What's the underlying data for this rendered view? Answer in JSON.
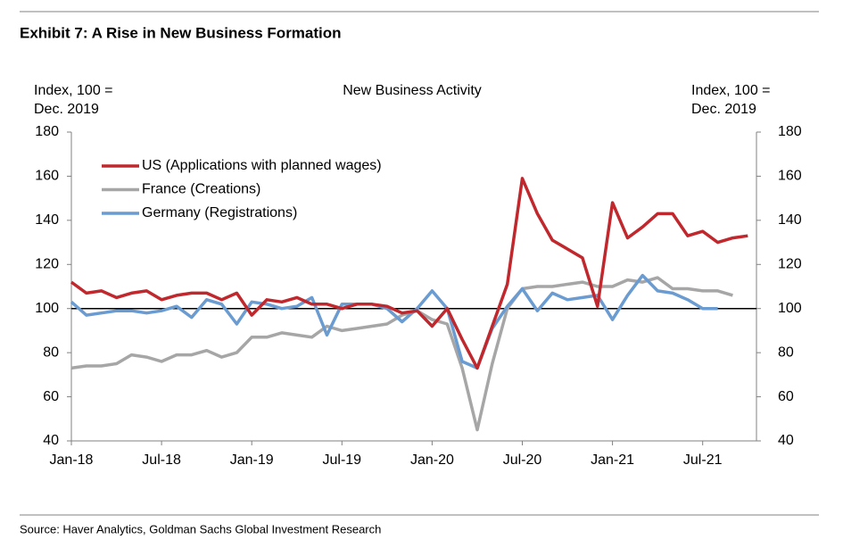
{
  "chart_data": {
    "type": "line",
    "title": "Exhibit 7: A Rise in New Business Formation",
    "subtitle": "New Business Activity",
    "y_label_lines": [
      "Index, 100 =",
      "Dec. 2019"
    ],
    "y2_label_lines": [
      "Index, 100 =",
      "Dec. 2019"
    ],
    "source": "Source: Haver Analytics, Goldman Sachs Global Investment Research",
    "categories": [
      "Jan-18",
      null,
      null,
      null,
      null,
      null,
      "Jul-18",
      null,
      null,
      null,
      null,
      null,
      "Jan-19",
      null,
      null,
      null,
      null,
      null,
      "Jul-19",
      null,
      null,
      null,
      null,
      null,
      "Jan-20",
      null,
      null,
      null,
      null,
      null,
      "Jul-20",
      null,
      null,
      null,
      null,
      null,
      "Jan-21",
      null,
      null,
      null,
      null,
      null,
      "Jul-21",
      null,
      null,
      null
    ],
    "series": [
      {
        "name": "US (Applications with planned wages)",
        "color": "#c0282d",
        "values": [
          112,
          107,
          108,
          105,
          107,
          108,
          104,
          106,
          107,
          107,
          104,
          107,
          97,
          104,
          103,
          105,
          102,
          102,
          100,
          102,
          102,
          101,
          98,
          99,
          92,
          100,
          86,
          73,
          92,
          111,
          159,
          143,
          131,
          127,
          123,
          101,
          148,
          132,
          137,
          143,
          143,
          133,
          135,
          130,
          132,
          133
        ]
      },
      {
        "name": "France (Creations)",
        "color": "#a6a6a6",
        "values": [
          73,
          74,
          74,
          75,
          79,
          78,
          76,
          79,
          79,
          81,
          78,
          80,
          87,
          87,
          89,
          88,
          87,
          92,
          90,
          91,
          92,
          93,
          97,
          99,
          95,
          93,
          73,
          45,
          75,
          100,
          109,
          110,
          110,
          111,
          112,
          110,
          110,
          113,
          112,
          114,
          109,
          109,
          108,
          108,
          106,
          null
        ]
      },
      {
        "name": "Germany (Registrations)",
        "color": "#6a9bd1",
        "values": [
          103,
          97,
          98,
          99,
          99,
          98,
          99,
          101,
          96,
          104,
          102,
          93,
          103,
          102,
          100,
          101,
          105,
          88,
          102,
          102,
          102,
          100,
          94,
          100,
          108,
          100,
          76,
          73,
          91,
          101,
          109,
          99,
          107,
          104,
          105,
          106,
          95,
          106,
          115,
          108,
          107,
          104,
          100,
          100,
          null,
          null
        ]
      }
    ],
    "ylim": [
      40,
      180
    ],
    "yticks": [
      40,
      60,
      80,
      100,
      120,
      140,
      160,
      180
    ],
    "y2lim": [
      40,
      180
    ],
    "y2ticks": [
      40,
      60,
      80,
      100,
      120,
      140,
      160,
      180
    ],
    "reference_line": 100,
    "reference_color": "#000000",
    "grid": false,
    "legend": "upper left"
  }
}
